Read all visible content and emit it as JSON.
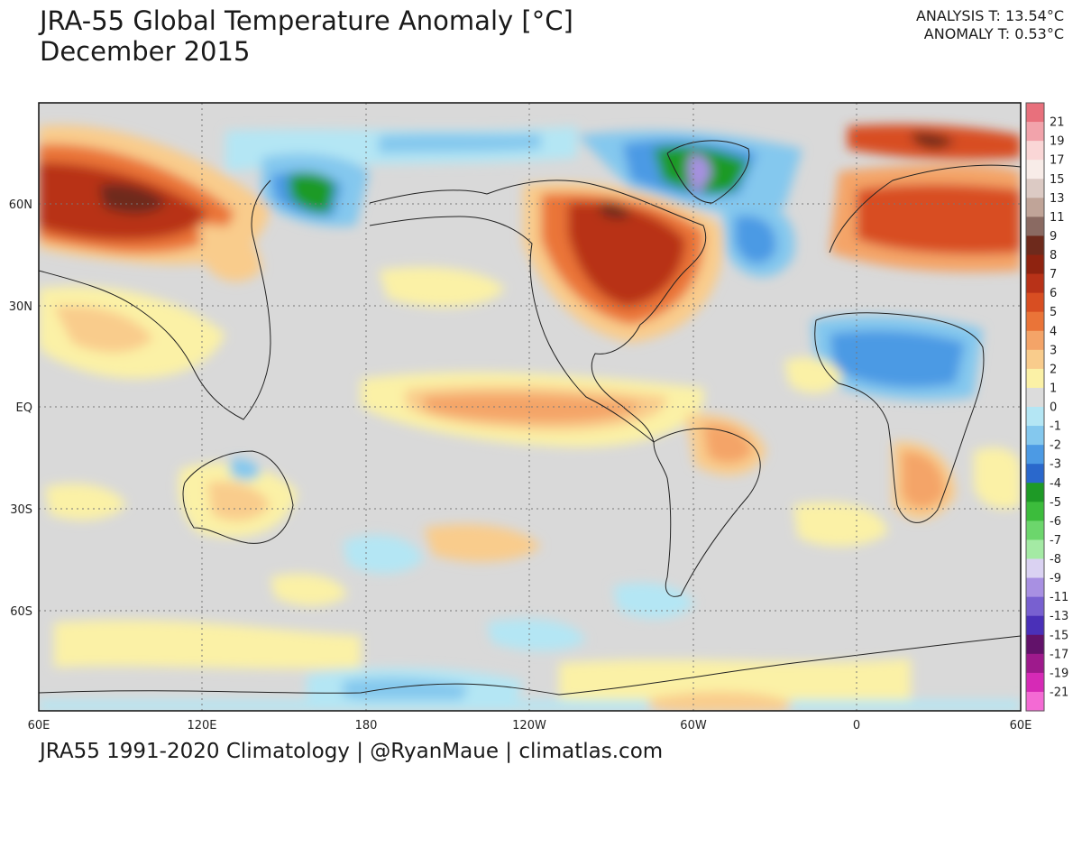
{
  "header": {
    "title_line1": "JRA-55 Global Temperature Anomaly [°C]",
    "title_line2": "December 2015"
  },
  "stats": {
    "analysis": "ANALYSIS T: 13.54°C",
    "anomaly": "ANOMALY T: 0.53°C"
  },
  "footer": {
    "credits": "JRA55 1991-2020 Climatology | @RyanMaue | climatlas.com"
  },
  "axes": {
    "x_ticks": [
      "60E",
      "120E",
      "180",
      "120W",
      "60W",
      "0",
      "60E"
    ],
    "y_ticks": [
      "60N",
      "30N",
      "EQ",
      "30S",
      "60S"
    ],
    "grid": true
  },
  "colorbar": {
    "labels": [
      "21",
      "19",
      "17",
      "15",
      "13",
      "11",
      "9",
      "8",
      "7",
      "6",
      "5",
      "4",
      "3",
      "2",
      "1",
      "0",
      "-1",
      "-2",
      "-3",
      "-4",
      "-5",
      "-6",
      "-7",
      "-8",
      "-9",
      "-11",
      "-13",
      "-15",
      "-17",
      "-19",
      "-21"
    ],
    "colors": [
      "#e8707c",
      "#f2a3ab",
      "#fad6d6",
      "#f8ece8",
      "#dccac4",
      "#c0a498",
      "#8a6a62",
      "#6e2a1c",
      "#8f2310",
      "#b83218",
      "#d84e22",
      "#ea7438",
      "#f4a468",
      "#f9cc8c",
      "#fbf1a6",
      "#dcdcdc",
      "#b4e6f4",
      "#84c8ee",
      "#4c9ae4",
      "#2a68cc",
      "#1e9a26",
      "#3cbc3c",
      "#6cd66c",
      "#a4eaa4",
      "#dad2f2",
      "#a890e2",
      "#7860d0",
      "#4a30b8",
      "#62126a",
      "#9e1a8c",
      "#d62ab6",
      "#f46ad4"
    ]
  }
}
